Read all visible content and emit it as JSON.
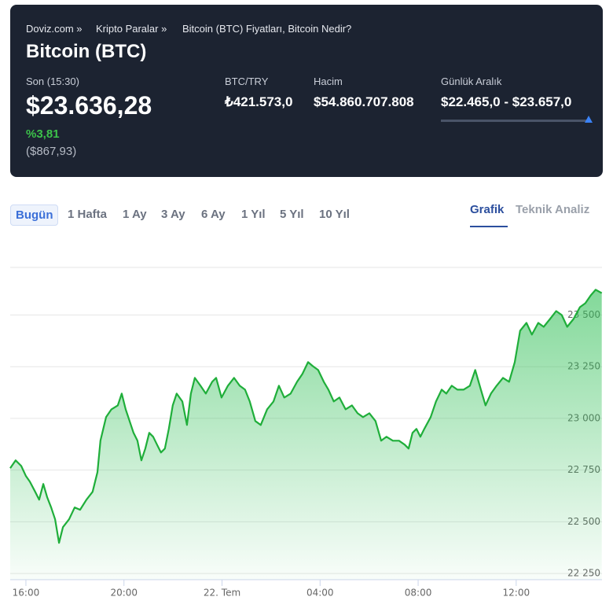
{
  "breadcrumb": [
    "Doviz.com »",
    "Kripto Paralar »",
    "Bitcoin (BTC) Fiyatları, Bitcoin Nedir?"
  ],
  "title": "Bitcoin (BTC)",
  "last": {
    "label": "Son (15:30)",
    "value": "$23.636,28",
    "change": "%3,81",
    "change_abs": "($867,93)"
  },
  "stats": [
    {
      "label": "BTC/TRY",
      "value": "₺421.573,0"
    },
    {
      "label": "Hacim",
      "value": "$54.860.707.808"
    },
    {
      "label": "Günlük Aralık",
      "value": "$22.465,0 - $23.657,0"
    }
  ],
  "periods": [
    "Bugün",
    "1 Hafta",
    "1 Ay",
    "3 Ay",
    "6 Ay",
    "1 Yıl",
    "5 Yıl",
    "10 Yıl"
  ],
  "views": [
    "Grafik",
    "Teknik Analiz"
  ],
  "chart_data": {
    "type": "line",
    "color": "#1fae3a",
    "x": [
      15.36,
      15.58,
      15.81,
      16.0,
      16.16,
      16.38,
      16.54,
      16.71,
      16.87,
      17.03,
      17.19,
      17.35,
      17.51,
      17.76,
      17.99,
      18.21,
      18.47,
      18.72,
      18.92,
      19.04,
      19.27,
      19.49,
      19.75,
      19.91,
      20.07,
      20.23,
      20.39,
      20.55,
      20.71,
      20.87,
      21.03,
      21.19,
      21.35,
      21.51,
      21.67,
      21.83,
      21.99,
      22.15,
      22.38,
      22.57,
      22.73,
      22.89,
      23.12,
      23.34,
      23.6,
      23.76,
      23.98,
      24.24,
      24.49,
      24.72,
      24.94,
      25.13,
      25.36,
      25.58,
      25.84,
      26.1,
      26.32,
      26.54,
      26.8,
      27.06,
      27.28,
      27.51,
      27.7,
      27.92,
      28.15,
      28.34,
      28.56,
      28.79,
      29.04,
      29.3,
      29.53,
      29.75,
      30.01,
      30.26,
      30.49,
      30.71,
      30.97,
      31.22,
      31.45,
      31.61,
      31.77,
      31.93,
      32.09,
      32.25,
      32.51,
      32.73,
      32.96,
      33.15,
      33.37,
      33.6,
      33.85,
      34.11,
      34.33,
      34.56,
      34.75,
      34.97,
      35.2,
      35.46,
      35.71,
      35.94,
      36.16,
      36.42,
      36.64,
      36.9,
      37.12,
      37.38,
      37.63,
      37.86,
      38.08,
      38.34,
      38.6,
      38.82,
      39.04,
      39.24,
      39.49
    ],
    "values": [
      22759,
      22797,
      22770,
      22721,
      22694,
      22645,
      22607,
      22683,
      22618,
      22569,
      22512,
      22398,
      22474,
      22512,
      22569,
      22558,
      22607,
      22645,
      22740,
      22892,
      23006,
      23044,
      23063,
      23120,
      23044,
      22987,
      22930,
      22892,
      22797,
      22854,
      22930,
      22911,
      22873,
      22835,
      22854,
      22949,
      23063,
      23120,
      23082,
      22968,
      23120,
      23196,
      23158,
      23120,
      23177,
      23196,
      23101,
      23158,
      23196,
      23158,
      23139,
      23082,
      22987,
      22968,
      23044,
      23082,
      23158,
      23101,
      23120,
      23177,
      23215,
      23272,
      23253,
      23234,
      23177,
      23139,
      23082,
      23101,
      23044,
      23063,
      23025,
      23006,
      23025,
      22987,
      22892,
      22911,
      22892,
      22892,
      22873,
      22854,
      22930,
      22949,
      22911,
      22949,
      23006,
      23082,
      23139,
      23120,
      23158,
      23139,
      23139,
      23158,
      23234,
      23139,
      23063,
      23120,
      23158,
      23196,
      23177,
      23272,
      23424,
      23462,
      23405,
      23462,
      23443,
      23481,
      23519,
      23500,
      23443,
      23481,
      23538,
      23557,
      23595,
      23622,
      23606
    ],
    "xlim": [
      15.36,
      39.5
    ],
    "xticks": [
      {
        "value": 16,
        "label": "16:00"
      },
      {
        "value": 20,
        "label": "20:00"
      },
      {
        "value": 24,
        "label": "22. Tem"
      },
      {
        "value": 28,
        "label": "04:00"
      },
      {
        "value": 32,
        "label": "08:00"
      },
      {
        "value": 36,
        "label": "12:00"
      }
    ],
    "ylim": [
      22220,
      23730
    ],
    "yticks": [
      {
        "value": 22250,
        "label": "22 250"
      },
      {
        "value": 22500,
        "label": "22 500"
      },
      {
        "value": 22750,
        "label": "22 750"
      },
      {
        "value": 23000,
        "label": "23 000"
      },
      {
        "value": 23250,
        "label": "23 250"
      },
      {
        "value": 23500,
        "label": "23 500"
      }
    ],
    "grid": true
  }
}
